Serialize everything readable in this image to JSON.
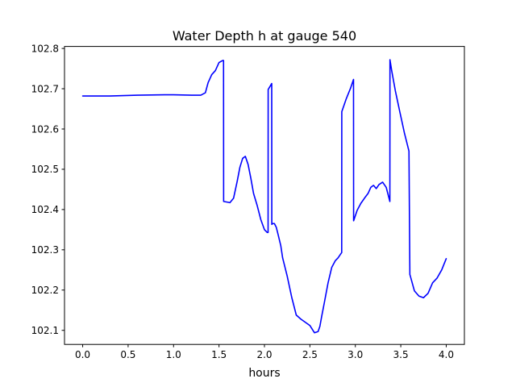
{
  "chart_data": {
    "type": "line",
    "title": "Water Depth h at gauge 540",
    "xlabel": "hours",
    "ylabel": "",
    "xlim": [
      -0.2,
      4.2
    ],
    "ylim": [
      102.065,
      102.805
    ],
    "xticks": [
      0.0,
      0.5,
      1.0,
      1.5,
      2.0,
      2.5,
      3.0,
      3.5,
      4.0
    ],
    "xtick_labels": [
      "0.0",
      "0.5",
      "1.0",
      "1.5",
      "2.0",
      "2.5",
      "3.0",
      "3.5",
      "4.0"
    ],
    "yticks": [
      102.1,
      102.2,
      102.3,
      102.4,
      102.5,
      102.6,
      102.7,
      102.8
    ],
    "ytick_labels": [
      "102.1",
      "102.2",
      "102.3",
      "102.4",
      "102.5",
      "102.6",
      "102.7",
      "102.8"
    ],
    "grid": false,
    "colors": {
      "line": "#0000ff",
      "axes": "#000000",
      "background": "#ffffff"
    },
    "series": [
      {
        "x": [
          0.0,
          0.3,
          0.6,
          0.9,
          1.0,
          1.2,
          1.3,
          1.35,
          1.38,
          1.42,
          1.46,
          1.5,
          1.54,
          1.55,
          1.551,
          1.6,
          1.62,
          1.66,
          1.7,
          1.73,
          1.76,
          1.79,
          1.82,
          1.85,
          1.88,
          1.92,
          1.96,
          2.0,
          2.03,
          2.04,
          2.041,
          2.08,
          2.081,
          2.09,
          2.11,
          2.13,
          2.15,
          2.18,
          2.2,
          2.25,
          2.3,
          2.35,
          2.4,
          2.45,
          2.5,
          2.55,
          2.59,
          2.61,
          2.63,
          2.66,
          2.7,
          2.74,
          2.78,
          2.81,
          2.84,
          2.85,
          2.851,
          2.9,
          2.95,
          2.98,
          2.981,
          3.02,
          3.06,
          3.1,
          3.14,
          3.17,
          3.2,
          3.23,
          3.26,
          3.3,
          3.34,
          3.38,
          3.381,
          3.4,
          3.44,
          3.49,
          3.54,
          3.59,
          3.6,
          3.601,
          3.65,
          3.7,
          3.75,
          3.8,
          3.85,
          3.9,
          3.95,
          4.0
        ],
        "y": [
          102.682,
          102.682,
          102.684,
          102.685,
          102.685,
          102.684,
          102.684,
          102.69,
          102.715,
          102.735,
          102.745,
          102.765,
          102.77,
          102.77,
          102.42,
          102.418,
          102.417,
          102.428,
          102.47,
          102.505,
          102.527,
          102.532,
          102.512,
          102.478,
          102.44,
          102.41,
          102.375,
          102.35,
          102.343,
          102.343,
          102.698,
          102.713,
          102.363,
          102.365,
          102.365,
          102.356,
          102.338,
          102.31,
          102.28,
          102.235,
          102.182,
          102.138,
          102.128,
          102.12,
          102.112,
          102.094,
          102.097,
          102.11,
          102.135,
          102.17,
          102.218,
          102.256,
          102.273,
          102.28,
          102.29,
          102.293,
          102.643,
          102.675,
          102.703,
          102.723,
          102.372,
          102.398,
          102.415,
          102.428,
          102.44,
          102.455,
          102.46,
          102.452,
          102.462,
          102.468,
          102.455,
          102.42,
          102.772,
          102.745,
          102.695,
          102.642,
          102.59,
          102.545,
          102.238,
          102.238,
          102.198,
          102.185,
          102.181,
          102.192,
          102.218,
          102.23,
          102.25,
          102.278
        ]
      }
    ]
  }
}
